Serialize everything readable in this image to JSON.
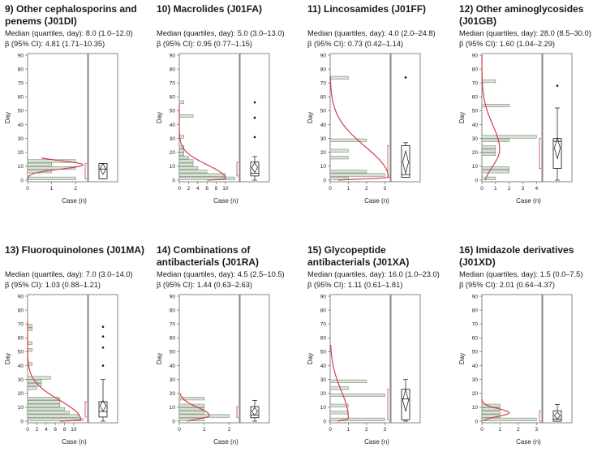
{
  "axis_labels": {
    "y": "Day",
    "x": "Case (n)"
  },
  "colors": {
    "bar_fill": "#d7e3d3",
    "bar_stroke": "#7e8a7c",
    "curve": "#cf3f4e",
    "frame": "#555555"
  },
  "y_ticks": [
    "0",
    "10",
    "20",
    "30",
    "40",
    "50",
    "60",
    "70",
    "80",
    "90"
  ],
  "chart_data": [
    {
      "type": "bar",
      "orientation": "horizontal",
      "title": "9) Other cephalosporins and penems (J01DI)",
      "median_text": "Median (quartiles, day): 8.0 (1.0–12.0)",
      "beta_text": "β (95% CI): 4.81 (1.71–10.35)",
      "xlabel": "Case (n)",
      "ylabel": "Day",
      "ylim": [
        0,
        90
      ],
      "xlim": [
        0,
        2.5
      ],
      "x_ticks": [
        "0",
        "1",
        "2"
      ],
      "bin_width": 2.5,
      "bars": [
        {
          "day": 0,
          "n": 2
        },
        {
          "day": 5,
          "n": 1
        },
        {
          "day": 7.5,
          "n": 2
        },
        {
          "day": 10,
          "n": 1
        },
        {
          "day": 12.5,
          "n": 2
        }
      ],
      "curve": {
        "mode": 11,
        "scale": 2.3,
        "sigma": 3,
        "sigma_tail": 3,
        "y_end": 16
      },
      "box": {
        "q1": 1,
        "median": 8,
        "q3": 12,
        "lo": 1,
        "hi": 12,
        "mean": 8,
        "outliers": []
      }
    },
    {
      "type": "bar",
      "orientation": "horizontal",
      "title": "10) Macrolides (J01FA)",
      "median_text": "Median (quartiles, day): 5.0 (3.0–13.0)",
      "beta_text": "β (95% CI): 0.95 (0.77–1.15)",
      "xlabel": "Case (n)",
      "ylabel": "Day",
      "ylim": [
        0,
        90
      ],
      "xlim": [
        0,
        13
      ],
      "x_ticks": [
        "0",
        "2",
        "4",
        "6",
        "8",
        "10"
      ],
      "bin_width": 2.5,
      "bars": [
        {
          "day": 0,
          "n": 12
        },
        {
          "day": 2.5,
          "n": 10
        },
        {
          "day": 5,
          "n": 6
        },
        {
          "day": 7.5,
          "n": 4
        },
        {
          "day": 10,
          "n": 3
        },
        {
          "day": 12.5,
          "n": 3
        },
        {
          "day": 15,
          "n": 2
        },
        {
          "day": 17.5,
          "n": 1
        },
        {
          "day": 20,
          "n": 1
        },
        {
          "day": 22.5,
          "n": 1
        },
        {
          "day": 30,
          "n": 1
        },
        {
          "day": 45,
          "n": 3
        },
        {
          "day": 55,
          "n": 1
        }
      ],
      "curve": {
        "mode": 1,
        "scale": 10,
        "sigma": 1,
        "sigma_tail": 10,
        "y_end": 55
      },
      "box": {
        "q1": 3,
        "median": 5,
        "q3": 13,
        "lo": 0,
        "hi": 17,
        "mean": 9,
        "outliers": [
          31,
          45,
          45,
          56
        ]
      }
    },
    {
      "type": "bar",
      "orientation": "horizontal",
      "title": "11) Lincosamides (J01FF)",
      "median_text": "Median (quartiles, day): 4.0 (2.0–24.8)",
      "beta_text": "β (95% CI): 0.73 (0.42–1.14)",
      "xlabel": "Case (n)",
      "ylabel": "Day",
      "ylim": [
        0,
        90
      ],
      "xlim": [
        0,
        3.3
      ],
      "x_ticks": [
        "0",
        "1",
        "2",
        "3"
      ],
      "bin_width": 2.5,
      "bars": [
        {
          "day": 0,
          "n": 1
        },
        {
          "day": 2.5,
          "n": 3
        },
        {
          "day": 5,
          "n": 2
        },
        {
          "day": 15,
          "n": 1
        },
        {
          "day": 20,
          "n": 1
        },
        {
          "day": 27.5,
          "n": 2
        },
        {
          "day": 72.5,
          "n": 1
        }
      ],
      "curve": {
        "mode": 2,
        "scale": 3.2,
        "sigma": 1,
        "sigma_tail": 22,
        "y_end": 75
      },
      "box": {
        "q1": 2,
        "median": 4,
        "q3": 24.8,
        "lo": 2,
        "hi": 27,
        "mean": 13,
        "outliers": [
          74
        ]
      }
    },
    {
      "type": "bar",
      "orientation": "horizontal",
      "title": "12) Other aminoglycosides (J01GB)",
      "median_text": "Median (quartiles, day): 28.0 (8.5–30.0)",
      "beta_text": "β (95% CI): 1.60 (1.04–2.29)",
      "xlabel": "Case (n)",
      "ylabel": "Day",
      "ylim": [
        0,
        90
      ],
      "xlim": [
        0,
        4.4
      ],
      "x_ticks": [
        "0",
        "1",
        "2",
        "3",
        "4"
      ],
      "bin_width": 2.5,
      "bars": [
        {
          "day": 0,
          "n": 1
        },
        {
          "day": 5,
          "n": 2
        },
        {
          "day": 7.5,
          "n": 2
        },
        {
          "day": 17.5,
          "n": 1
        },
        {
          "day": 20,
          "n": 1
        },
        {
          "day": 22.5,
          "n": 1
        },
        {
          "day": 27.5,
          "n": 2
        },
        {
          "day": 30,
          "n": 4
        },
        {
          "day": 52.5,
          "n": 2
        },
        {
          "day": 70,
          "n": 1
        }
      ],
      "curve": {
        "mode": 22,
        "scale": 1.3,
        "sigma": 12,
        "sigma_tail": 18,
        "y_end": 90
      },
      "box": {
        "q1": 8.5,
        "median": 28,
        "q3": 30,
        "lo": 0,
        "hi": 52,
        "mean": 23,
        "outliers": [
          68
        ]
      }
    },
    {
      "type": "bar",
      "orientation": "horizontal",
      "title": "13) Fluoroquinolones (J01MA)",
      "median_text": "Median (quartiles, day): 7.0 (3.0–14.0)",
      "beta_text": "β (95% CI): 1.03 (0.88–1.21)",
      "xlabel": "Case (n)",
      "ylabel": "Day",
      "ylim": [
        0,
        90
      ],
      "xlim": [
        0,
        13
      ],
      "x_ticks": [
        "0",
        "2",
        "4",
        "6",
        "8",
        "10"
      ],
      "bin_width": 2.5,
      "bars": [
        {
          "day": 0,
          "n": 12
        },
        {
          "day": 2.5,
          "n": 11
        },
        {
          "day": 5,
          "n": 9
        },
        {
          "day": 7.5,
          "n": 8
        },
        {
          "day": 10,
          "n": 7
        },
        {
          "day": 12.5,
          "n": 7
        },
        {
          "day": 15,
          "n": 7
        },
        {
          "day": 22.5,
          "n": 2
        },
        {
          "day": 25,
          "n": 3
        },
        {
          "day": 27.5,
          "n": 3
        },
        {
          "day": 30,
          "n": 5
        },
        {
          "day": 40,
          "n": 1
        },
        {
          "day": 50,
          "n": 1
        },
        {
          "day": 55,
          "n": 1
        },
        {
          "day": 65,
          "n": 1
        },
        {
          "day": 67.5,
          "n": 1
        }
      ],
      "curve": {
        "mode": 1,
        "scale": 11.5,
        "sigma": 1,
        "sigma_tail": 14,
        "y_end": 72
      },
      "box": {
        "q1": 3,
        "median": 7,
        "q3": 14,
        "lo": 0,
        "hi": 30,
        "mean": 11,
        "outliers": [
          40,
          53,
          61,
          68
        ]
      }
    },
    {
      "type": "bar",
      "orientation": "horizontal",
      "title": "14) Combinations of antibacterials (J01RA)",
      "median_text": "Median (quartiles, day): 4.5 (2.5–10.5)",
      "beta_text": "β (95% CI): 1.44 (0.63–2.63)",
      "xlabel": "Case (n)",
      "ylabel": "Day",
      "ylim": [
        0,
        90
      ],
      "xlim": [
        0,
        2.4
      ],
      "x_ticks": [
        "0",
        "1",
        "2"
      ],
      "bin_width": 2.5,
      "bars": [
        {
          "day": 0,
          "n": 1
        },
        {
          "day": 2.5,
          "n": 2
        },
        {
          "day": 5,
          "n": 1
        },
        {
          "day": 7.5,
          "n": 1
        },
        {
          "day": 10,
          "n": 1
        },
        {
          "day": 15,
          "n": 1
        }
      ],
      "curve": {
        "mode": 4,
        "scale": 1.2,
        "sigma": 2.5,
        "sigma_tail": 6,
        "y_end": 20
      },
      "box": {
        "q1": 2.5,
        "median": 4.5,
        "q3": 10.5,
        "lo": 0,
        "hi": 15,
        "mean": 7,
        "outliers": []
      }
    },
    {
      "type": "bar",
      "orientation": "horizontal",
      "title": "15) Glycopeptide antibacterials (J01XA)",
      "median_text": "Median (quartiles, day): 16.0 (1.0–23.0)",
      "beta_text": "β (95% CI): 1.11 (0.61–1.81)",
      "xlabel": "Case (n)",
      "ylabel": "Day",
      "ylim": [
        0,
        90
      ],
      "xlim": [
        0,
        3.3
      ],
      "x_ticks": [
        "0",
        "1",
        "2",
        "3"
      ],
      "bin_width": 2.5,
      "bars": [
        {
          "day": 0,
          "n": 3
        },
        {
          "day": 5,
          "n": 1
        },
        {
          "day": 10,
          "n": 1
        },
        {
          "day": 17.5,
          "n": 3
        },
        {
          "day": 22.5,
          "n": 1
        },
        {
          "day": 27.5,
          "n": 2
        }
      ],
      "curve": {
        "mode": 2,
        "scale": 1.0,
        "sigma": 1.5,
        "sigma_tail": 20,
        "y_end": 55
      },
      "box": {
        "q1": 1,
        "median": 16,
        "q3": 23,
        "lo": 0,
        "hi": 30,
        "mean": 15,
        "outliers": []
      }
    },
    {
      "type": "bar",
      "orientation": "horizontal",
      "title": "16) Imidazole derivatives (J01XD)",
      "median_text": "Median (quartiles, day): 1.5 (0.0–7.5)",
      "beta_text": "β (95% CI): 2.01 (0.64–4.37)",
      "xlabel": "Case (n)",
      "ylabel": "Day",
      "ylim": [
        0,
        90
      ],
      "xlim": [
        0,
        3.3
      ],
      "x_ticks": [
        "0",
        "1",
        "2",
        "3"
      ],
      "bin_width": 2.5,
      "bars": [
        {
          "day": 0,
          "n": 3
        },
        {
          "day": 2.5,
          "n": 1
        },
        {
          "day": 5,
          "n": 1
        },
        {
          "day": 7.5,
          "n": 1
        },
        {
          "day": 10,
          "n": 1
        }
      ],
      "curve": {
        "mode": 6,
        "scale": 1.5,
        "sigma": 2.5,
        "sigma_tail": 3,
        "y_end": 16
      },
      "box": {
        "q1": 0,
        "median": 1.5,
        "q3": 7.5,
        "lo": 0,
        "hi": 12,
        "mean": 4,
        "outliers": []
      }
    }
  ]
}
